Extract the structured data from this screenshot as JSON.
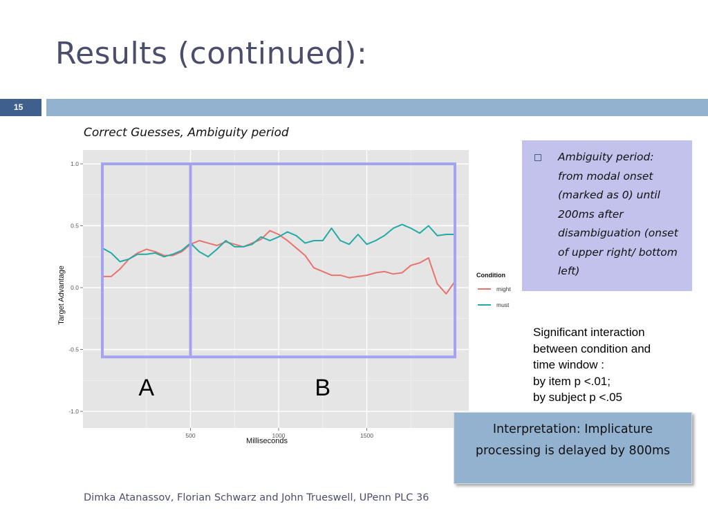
{
  "slide": {
    "title": "Results (continued):",
    "slide_number": "15",
    "footer": "Dimka Atanassov, Florian Schwarz and John Trueswell, UPenn PLC 36"
  },
  "side_box": {
    "bullet_text": "Ambiguity period: from modal onset (marked as 0) until 200ms after disambiguation (onset of upper right/ bottom left)"
  },
  "significance": {
    "lines": [
      "Significant interaction",
      "between condition and",
      "time window :",
      "by item p <.01;",
      "by subject p <.05"
    ]
  },
  "interpretation": {
    "text": "Interpretation: Implicature processing is delayed by 800ms"
  },
  "colors": {
    "might": "#e8726c",
    "must": "#22aaa6",
    "window_box": "#a3a3ef",
    "panel_bg": "#e5e5e5",
    "grid": "#ffffff"
  },
  "chart_data": {
    "type": "line",
    "title": "Correct Guesses, Ambiguity period",
    "xlabel": "Milliseconds",
    "ylabel": "Target Advantage",
    "xlim": [
      0,
      2000
    ],
    "ylim": [
      -1.1,
      1.1
    ],
    "x_ticks": [
      500,
      1000,
      1500
    ],
    "y_ticks": [
      -1.0,
      -0.5,
      0.0,
      0.5,
      1.0
    ],
    "y_tick_labels": [
      "-1.0",
      "-0.5",
      "0.0",
      "0.5",
      "1.0"
    ],
    "grid": true,
    "legend": {
      "title": "Condition",
      "position": "right"
    },
    "annotations": {
      "window_labels": [
        "A",
        "B"
      ],
      "windows_ms": [
        [
          0,
          500
        ],
        [
          500,
          2000
        ]
      ],
      "window_y_range": [
        -0.56,
        1.0
      ]
    },
    "x": [
      0,
      50,
      100,
      150,
      200,
      250,
      300,
      350,
      400,
      450,
      500,
      550,
      600,
      650,
      700,
      750,
      800,
      850,
      900,
      950,
      1000,
      1050,
      1100,
      1150,
      1200,
      1250,
      1300,
      1350,
      1400,
      1450,
      1500,
      1550,
      1600,
      1650,
      1700,
      1750,
      1800,
      1850,
      1900,
      1950,
      2000
    ],
    "series": [
      {
        "name": "might",
        "values": [
          0.09,
          0.09,
          0.15,
          0.23,
          0.28,
          0.31,
          0.29,
          0.26,
          0.26,
          0.29,
          0.35,
          0.38,
          0.36,
          0.34,
          0.37,
          0.35,
          0.33,
          0.36,
          0.39,
          0.46,
          0.43,
          0.38,
          0.32,
          0.26,
          0.16,
          0.13,
          0.1,
          0.1,
          0.08,
          0.09,
          0.1,
          0.12,
          0.13,
          0.11,
          0.12,
          0.18,
          0.2,
          0.24,
          0.03,
          -0.05,
          0.05
        ]
      },
      {
        "name": "must",
        "values": [
          0.32,
          0.28,
          0.21,
          0.23,
          0.27,
          0.27,
          0.28,
          0.25,
          0.27,
          0.3,
          0.36,
          0.29,
          0.25,
          0.31,
          0.38,
          0.33,
          0.33,
          0.35,
          0.41,
          0.38,
          0.41,
          0.45,
          0.42,
          0.36,
          0.38,
          0.38,
          0.48,
          0.38,
          0.35,
          0.43,
          0.35,
          0.38,
          0.42,
          0.48,
          0.51,
          0.48,
          0.44,
          0.5,
          0.42,
          0.43,
          0.43
        ]
      }
    ]
  }
}
